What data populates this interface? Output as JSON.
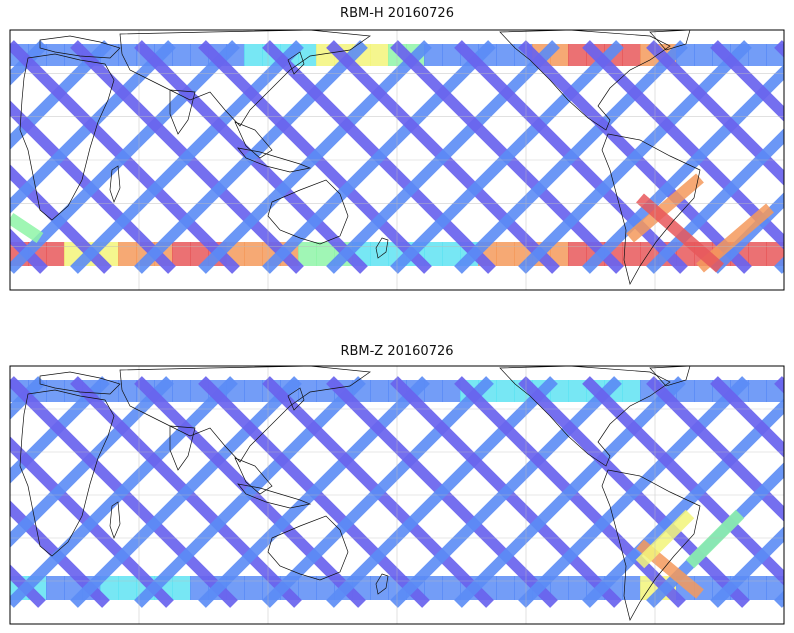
{
  "panels": [
    {
      "title": "RBM-H 20160726",
      "colors": {
        "deep_blue": "#6a63ee",
        "mid_blue": "#5b8cf6",
        "cyan": "#5fe3f2",
        "green": "#8ff5a8",
        "yellow": "#f3f57a",
        "orange": "#f59a5c",
        "red": "#e8585b"
      }
    },
    {
      "title": "RBM-Z 20160726",
      "colors": {
        "deep_blue": "#6a63ee",
        "mid_blue": "#5b8cf6",
        "cyan": "#5fe3f2",
        "green": "#8ff5a8",
        "yellow": "#f3f57a",
        "orange": "#f59a5c",
        "red": "#e8585b"
      }
    }
  ],
  "map": {
    "projection": "plate-carree",
    "gridlines": true,
    "continents": [
      "Africa",
      "Europe",
      "Asia",
      "Australia",
      "North America",
      "South America"
    ]
  }
}
